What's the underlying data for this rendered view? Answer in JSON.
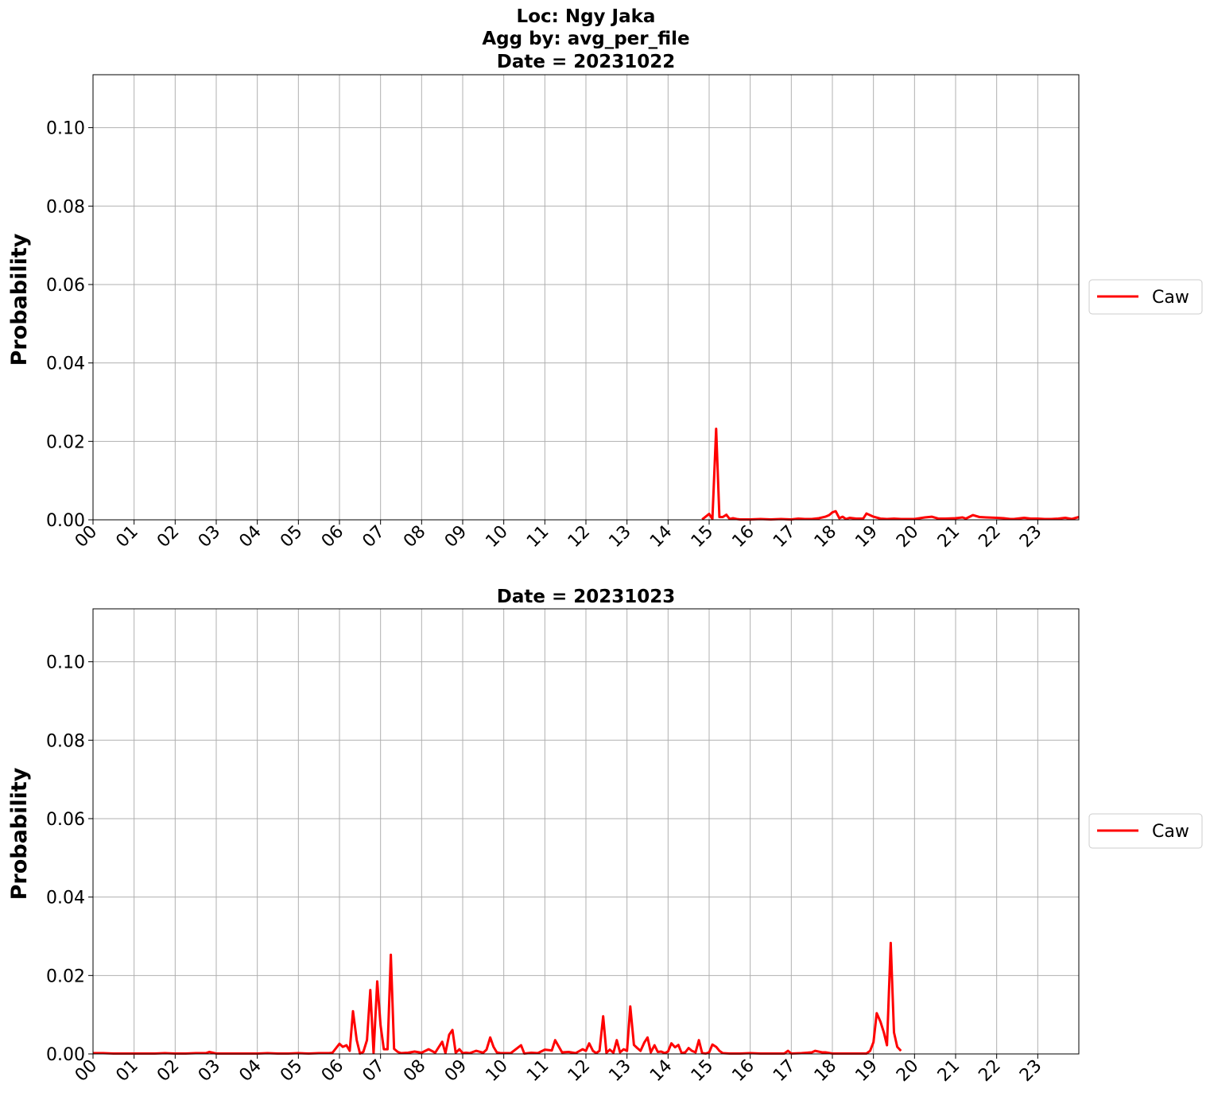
{
  "chart_data": [
    {
      "type": "line",
      "title_lines": [
        "Loc: Ngy Jaka",
        "Agg by: avg_per_file",
        "Date = 20231022"
      ],
      "xlabel": "",
      "ylabel": "Probability",
      "xlim": [
        0,
        24
      ],
      "ylim": [
        0,
        0.1135
      ],
      "yticks": [
        "0.00",
        "0.02",
        "0.04",
        "0.06",
        "0.08",
        "0.10"
      ],
      "ytick_values": [
        0,
        0.02,
        0.04,
        0.06,
        0.08,
        0.1
      ],
      "xticks": [
        "00",
        "01",
        "02",
        "03",
        "04",
        "05",
        "06",
        "07",
        "08",
        "09",
        "10",
        "11",
        "12",
        "13",
        "14",
        "15",
        "16",
        "17",
        "18",
        "19",
        "20",
        "21",
        "22",
        "23"
      ],
      "grid": true,
      "legend_position": "right",
      "series": [
        {
          "name": "Caw",
          "color": "#ff0000",
          "x": [
            14.83,
            15.0,
            15.08,
            15.17,
            15.25,
            15.33,
            15.42,
            15.5,
            15.58,
            15.67,
            15.75,
            15.83,
            16.0,
            16.25,
            16.5,
            16.75,
            17.0,
            17.17,
            17.33,
            17.5,
            17.67,
            17.83,
            17.92,
            18.0,
            18.08,
            18.17,
            18.25,
            18.33,
            18.42,
            18.5,
            18.58,
            18.75,
            18.83,
            19.0,
            19.17,
            19.33,
            19.5,
            19.67,
            19.83,
            20.0,
            20.25,
            20.42,
            20.58,
            20.75,
            21.0,
            21.17,
            21.25,
            21.42,
            21.58,
            21.75,
            22.0,
            22.17,
            22.33,
            22.42,
            22.5,
            22.67,
            22.83,
            23.0,
            23.17,
            23.33,
            23.5,
            23.67,
            23.83,
            24.0
          ],
          "y": [
            0.0001,
            0.0015,
            0.0002,
            0.0232,
            0.0007,
            0.0007,
            0.0013,
            0.0002,
            0.0004,
            0.0002,
            0.0001,
            0.0001,
            0.0001,
            0.0002,
            0.0001,
            0.0002,
            0.0001,
            0.0003,
            0.0002,
            0.0002,
            0.0004,
            0.0008,
            0.0012,
            0.0019,
            0.0022,
            0.0004,
            0.0008,
            0.0002,
            0.0005,
            0.0004,
            0.0003,
            0.0003,
            0.0016,
            0.0008,
            0.0003,
            0.0002,
            0.0003,
            0.0002,
            0.0002,
            0.0002,
            0.0006,
            0.0008,
            0.0003,
            0.0003,
            0.0004,
            0.0006,
            0.0003,
            0.0012,
            0.0007,
            0.0006,
            0.0005,
            0.0004,
            0.0002,
            0.0002,
            0.0003,
            0.0005,
            0.0003,
            0.0003,
            0.0002,
            0.0002,
            0.0003,
            0.0005,
            0.0002,
            0.0007
          ]
        }
      ]
    },
    {
      "type": "line",
      "title_lines": [
        "Date = 20231023"
      ],
      "xlabel": "",
      "ylabel": "Probability",
      "xlim": [
        0,
        24
      ],
      "ylim": [
        0,
        0.1135
      ],
      "yticks": [
        "0.00",
        "0.02",
        "0.04",
        "0.06",
        "0.08",
        "0.10"
      ],
      "ytick_values": [
        0,
        0.02,
        0.04,
        0.06,
        0.08,
        0.1
      ],
      "xticks": [
        "00",
        "01",
        "02",
        "03",
        "04",
        "05",
        "06",
        "07",
        "08",
        "09",
        "10",
        "11",
        "12",
        "13",
        "14",
        "15",
        "16",
        "17",
        "18",
        "19",
        "20",
        "21",
        "22",
        "23"
      ],
      "grid": true,
      "legend_position": "right",
      "series": [
        {
          "name": "Caw",
          "color": "#ff0000",
          "x": [
            0.0,
            0.25,
            0.5,
            0.75,
            1.0,
            1.25,
            1.5,
            1.75,
            2.0,
            2.25,
            2.5,
            2.75,
            2.83,
            3.0,
            3.25,
            3.5,
            3.75,
            4.0,
            4.25,
            4.5,
            4.75,
            5.0,
            5.25,
            5.5,
            5.75,
            5.83,
            6.0,
            6.08,
            6.17,
            6.25,
            6.33,
            6.42,
            6.5,
            6.58,
            6.67,
            6.75,
            6.83,
            6.92,
            7.0,
            7.08,
            7.17,
            7.25,
            7.33,
            7.42,
            7.5,
            7.67,
            7.83,
            8.0,
            8.17,
            8.33,
            8.5,
            8.58,
            8.67,
            8.75,
            8.83,
            8.92,
            9.0,
            9.08,
            9.17,
            9.33,
            9.5,
            9.58,
            9.67,
            9.75,
            9.83,
            9.92,
            10.0,
            10.17,
            10.42,
            10.5,
            10.67,
            10.83,
            11.0,
            11.17,
            11.25,
            11.42,
            11.58,
            11.75,
            11.92,
            12.0,
            12.08,
            12.17,
            12.25,
            12.33,
            12.42,
            12.5,
            12.58,
            12.67,
            12.75,
            12.83,
            12.92,
            13.0,
            13.08,
            13.17,
            13.25,
            13.33,
            13.42,
            13.5,
            13.58,
            13.67,
            13.75,
            13.83,
            13.92,
            14.0,
            14.08,
            14.17,
            14.25,
            14.33,
            14.42,
            14.5,
            14.58,
            14.67,
            14.75,
            14.83,
            14.92,
            15.0,
            15.08,
            15.17,
            15.25,
            15.33,
            15.5,
            15.75,
            16.0,
            16.25,
            16.5,
            16.75,
            16.83,
            16.92,
            17.0,
            17.25,
            17.5,
            17.58,
            17.75,
            17.83,
            18.0,
            18.25,
            18.5,
            18.75,
            18.83,
            18.92,
            19.0,
            19.08,
            19.17,
            19.25,
            19.33,
            19.42,
            19.5,
            19.58,
            19.67
          ],
          "y": [
            0.0002,
            0.0002,
            0.0001,
            0.0001,
            0.0001,
            0.0001,
            0.0001,
            0.0002,
            0.0001,
            0.0001,
            0.0002,
            0.0002,
            0.0005,
            0.0001,
            0.0001,
            0.0001,
            0.0001,
            0.0001,
            0.0002,
            0.0001,
            0.0001,
            0.0002,
            0.0001,
            0.0002,
            0.0002,
            0.0003,
            0.0026,
            0.0018,
            0.0022,
            0.0008,
            0.0109,
            0.0035,
            0.0001,
            0.0005,
            0.0035,
            0.0163,
            0.0002,
            0.0185,
            0.0073,
            0.0012,
            0.0012,
            0.0253,
            0.0013,
            0.0005,
            0.0002,
            0.0003,
            0.0006,
            0.0003,
            0.0012,
            0.0003,
            0.0031,
            0.0002,
            0.0049,
            0.0061,
            0.0003,
            0.0012,
            0.0002,
            0.0003,
            0.0002,
            0.0008,
            0.0003,
            0.0011,
            0.0042,
            0.0018,
            0.0004,
            0.0002,
            0.0002,
            0.0002,
            0.0022,
            0.0001,
            0.0003,
            0.0002,
            0.0011,
            0.0009,
            0.0035,
            0.0004,
            0.0005,
            0.0002,
            0.0012,
            0.0008,
            0.0027,
            0.0008,
            0.0002,
            0.0008,
            0.0096,
            0.0003,
            0.0011,
            0.0003,
            0.0035,
            0.0004,
            0.0012,
            0.0008,
            0.0121,
            0.0023,
            0.0015,
            0.0008,
            0.0029,
            0.0042,
            0.0004,
            0.0022,
            0.0005,
            0.0006,
            0.0002,
            0.0006,
            0.0027,
            0.0017,
            0.0023,
            0.0002,
            0.0004,
            0.0015,
            0.0008,
            0.0004,
            0.0035,
            0.0002,
            0.0001,
            0.0004,
            0.0024,
            0.0018,
            0.0008,
            0.0002,
            0.0001,
            0.0001,
            0.0002,
            0.0001,
            0.0001,
            0.0001,
            0.0001,
            0.0008,
            0.0001,
            0.0002,
            0.0004,
            0.0008,
            0.0004,
            0.0004,
            0.0001,
            0.0001,
            0.0001,
            0.0001,
            0.0001,
            0.0008,
            0.003,
            0.0104,
            0.0082,
            0.0056,
            0.0022,
            0.0283,
            0.0055,
            0.0018,
            0.0008
          ]
        }
      ]
    }
  ]
}
